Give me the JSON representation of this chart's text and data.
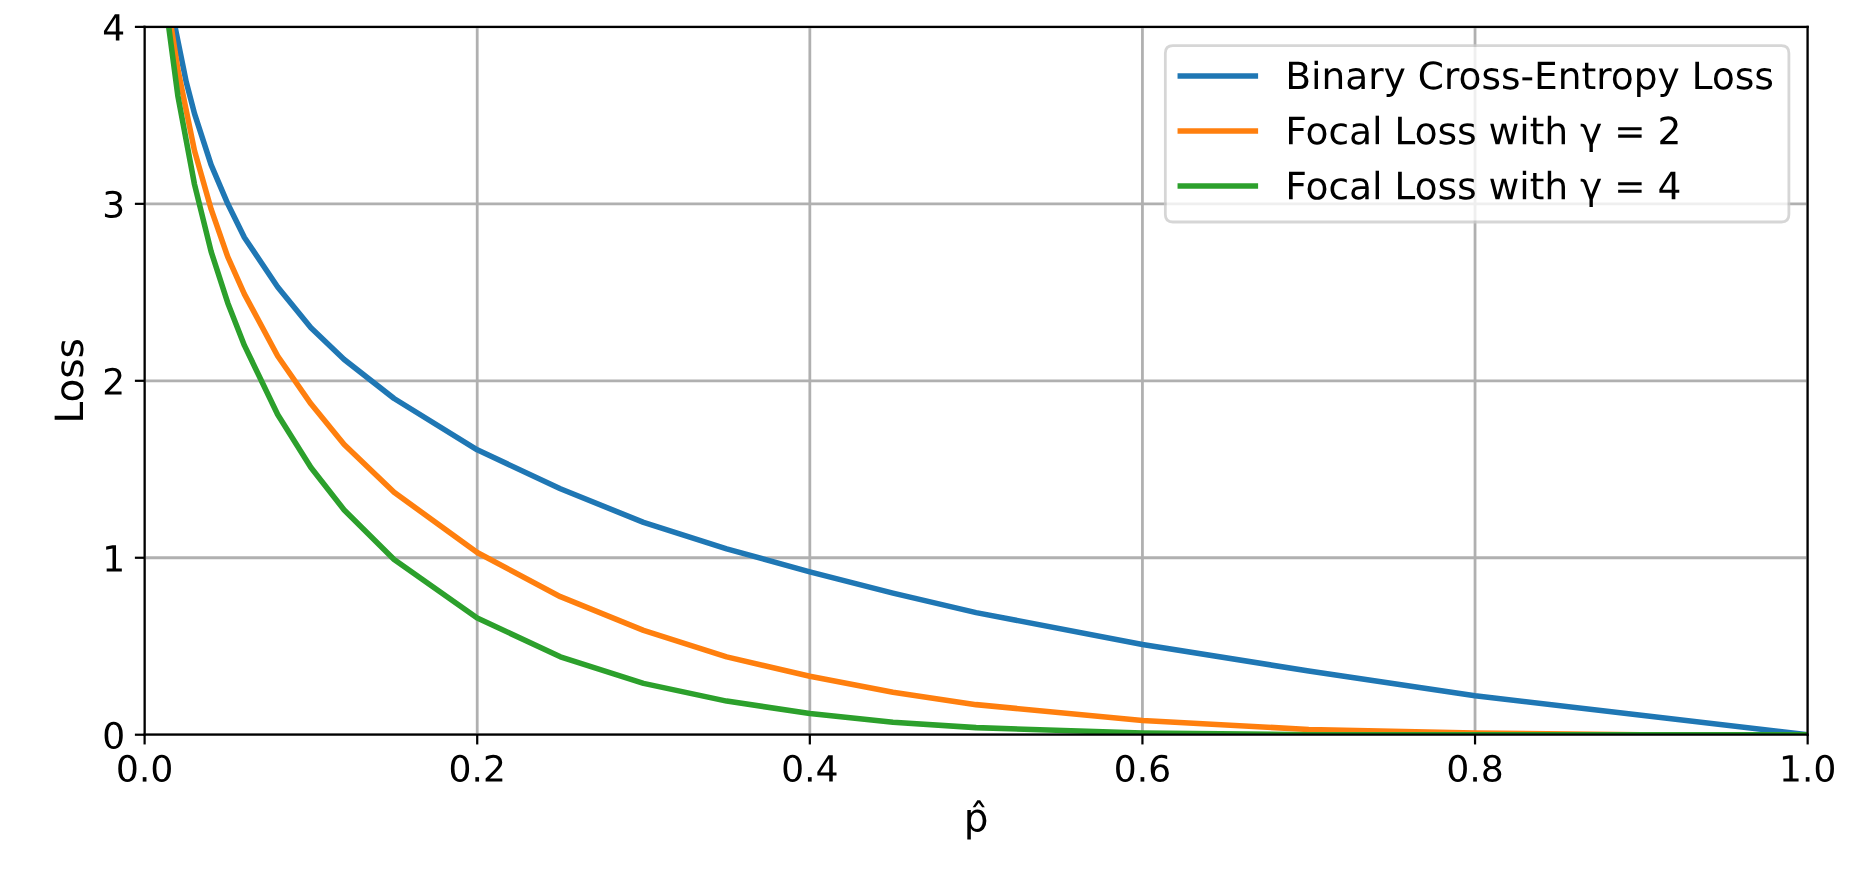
{
  "chart_data": {
    "type": "line",
    "xlabel": "p̂",
    "ylabel": "Loss",
    "xlim": [
      0,
      1
    ],
    "ylim": [
      0,
      4
    ],
    "xticks": [
      {
        "value": 0,
        "label": "0.0"
      },
      {
        "value": 0.2,
        "label": "0.2"
      },
      {
        "value": 0.4,
        "label": "0.4"
      },
      {
        "value": 0.6,
        "label": "0.6"
      },
      {
        "value": 0.8,
        "label": "0.8"
      },
      {
        "value": 1,
        "label": "1.0"
      }
    ],
    "yticks": [
      0,
      1,
      2,
      3,
      4
    ],
    "grid": true,
    "legend": "top right",
    "line_style": "solid",
    "marker": "none",
    "series": [
      {
        "name": "Binary Cross-Entropy Loss",
        "color": "#1f77b4",
        "x": [
          0.0183,
          0.025,
          0.03,
          0.04,
          0.05,
          0.06,
          0.08,
          0.1,
          0.12,
          0.15,
          0.2,
          0.25,
          0.3,
          0.35,
          0.4,
          0.45,
          0.5,
          0.6,
          0.7,
          0.8,
          0.9,
          1.0
        ],
        "values": [
          4.0,
          3.69,
          3.51,
          3.22,
          3.0,
          2.81,
          2.53,
          2.3,
          2.12,
          1.9,
          1.61,
          1.39,
          1.2,
          1.05,
          0.92,
          0.8,
          0.69,
          0.51,
          0.36,
          0.22,
          0.11,
          0
        ]
      },
      {
        "name": "Focal Loss with γ = 2",
        "color": "#ff7f0e",
        "x": [
          0.016,
          0.02,
          0.03,
          0.04,
          0.05,
          0.06,
          0.08,
          0.1,
          0.12,
          0.15,
          0.2,
          0.25,
          0.3,
          0.35,
          0.4,
          0.45,
          0.5,
          0.6,
          0.7,
          0.8,
          0.9,
          1.0
        ],
        "values": [
          4.0,
          3.76,
          3.3,
          2.97,
          2.7,
          2.49,
          2.14,
          1.87,
          1.64,
          1.37,
          1.03,
          0.78,
          0.59,
          0.44,
          0.33,
          0.24,
          0.17,
          0.08,
          0.03,
          0.01,
          0,
          0
        ]
      },
      {
        "name": "Focal Loss with γ = 4",
        "color": "#2ca02c",
        "x": [
          0.0145,
          0.02,
          0.03,
          0.04,
          0.05,
          0.06,
          0.08,
          0.1,
          0.12,
          0.15,
          0.2,
          0.25,
          0.3,
          0.35,
          0.4,
          0.45,
          0.5,
          0.6,
          0.7,
          0.8,
          0.9,
          1.0
        ],
        "values": [
          4.0,
          3.61,
          3.11,
          2.73,
          2.44,
          2.2,
          1.81,
          1.51,
          1.27,
          0.99,
          0.66,
          0.44,
          0.29,
          0.19,
          0.12,
          0.07,
          0.04,
          0.01,
          0,
          0,
          0,
          0
        ]
      }
    ]
  }
}
